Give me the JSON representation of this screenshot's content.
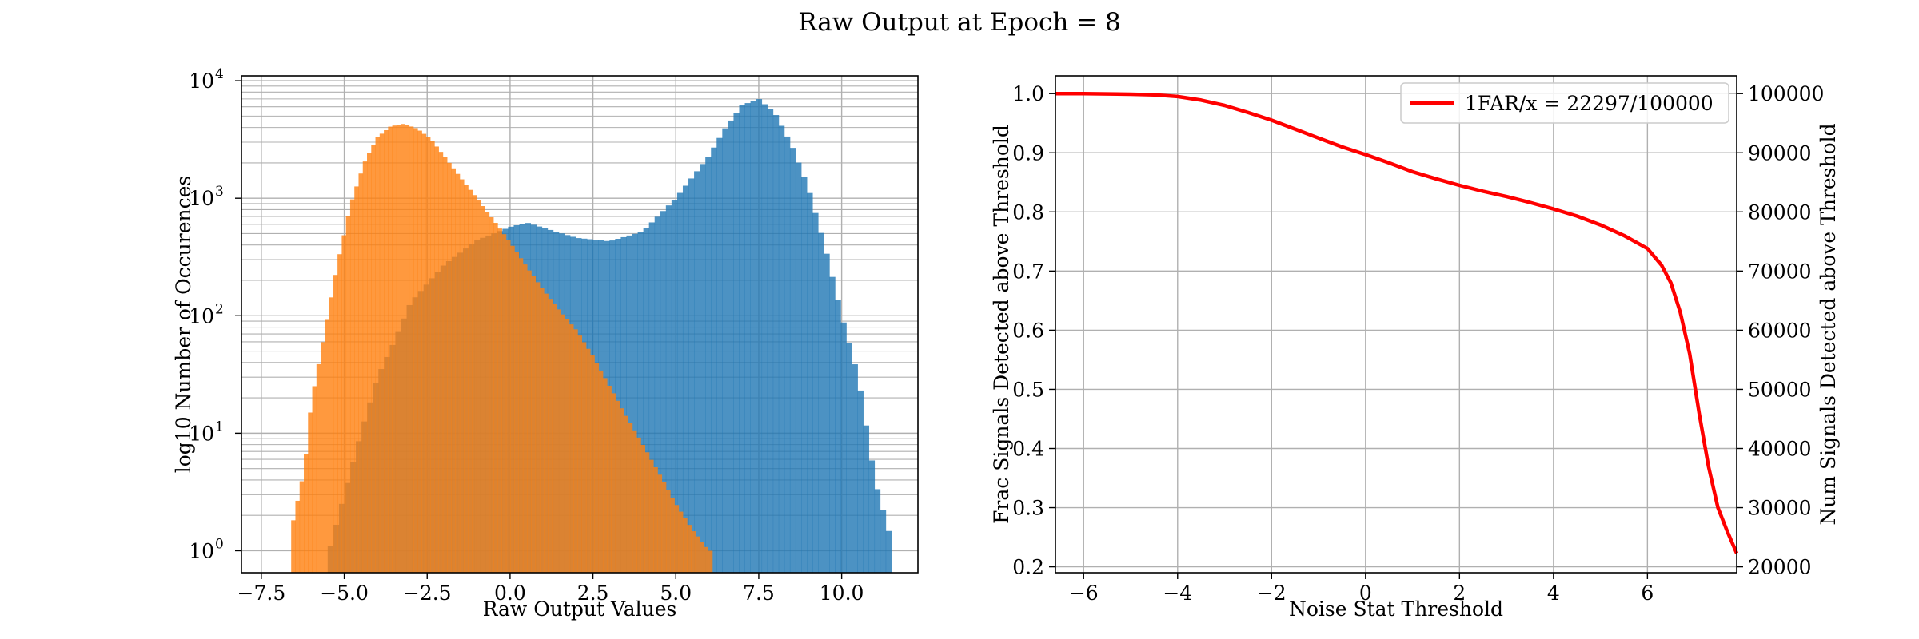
{
  "figure": {
    "title": "Raw Output at Epoch = 8"
  },
  "colors": {
    "signal": "#1f77b4",
    "noise": "#ff7f0e",
    "curve": "#ff0000",
    "grid": "#b0b0b0"
  },
  "chart_data": [
    {
      "type": "bar",
      "subtype": "histogram-overlay",
      "xlabel": "Raw Output Values",
      "ylabel": "log10 Number of Occurences",
      "xlim": [
        -8.1,
        12.3
      ],
      "ylim": [
        0.65,
        11000
      ],
      "yscale": "log",
      "grid": true,
      "xticks": [
        -7.5,
        -5.0,
        -2.5,
        0.0,
        2.5,
        5.0,
        7.5,
        10.0
      ],
      "xtick_labels": [
        "−7.5",
        "−5.0",
        "−2.5",
        "0.0",
        "2.5",
        "5.0",
        "7.5",
        "10.0"
      ],
      "yticks": [
        1,
        10,
        100,
        1000,
        10000
      ],
      "ytick_labels": [
        {
          "base": "10",
          "exp": "0"
        },
        {
          "base": "10",
          "exp": "1"
        },
        {
          "base": "10",
          "exp": "2"
        },
        {
          "base": "10",
          "exp": "3"
        },
        {
          "base": "10",
          "exp": "4"
        }
      ],
      "series": [
        {
          "color": "#1f77b4",
          "bin_range": [
            -5.5,
            11.5
          ],
          "bins": 100,
          "profile_x": [
            -5.5,
            -5.0,
            -4.5,
            -4.0,
            -3.5,
            -3.0,
            -2.0,
            -1.0,
            0.0,
            0.5,
            1.0,
            2.0,
            3.0,
            4.0,
            5.0,
            6.0,
            6.5,
            7.0,
            7.5,
            8.0,
            8.5,
            9.0,
            9.5,
            10.0,
            10.5,
            11.0,
            11.5
          ],
          "profile_y": [
            0.9,
            3,
            10,
            30,
            60,
            130,
            270,
            440,
            570,
            620,
            560,
            460,
            430,
            520,
            1000,
            2300,
            4000,
            6200,
            7000,
            5200,
            2800,
            1200,
            380,
            100,
            30,
            4,
            1.2
          ]
        },
        {
          "color": "#ff7f0e",
          "bin_range": [
            -6.6,
            6.1
          ],
          "bins": 100,
          "profile_x": [
            -6.6,
            -6.2,
            -6.0,
            -5.6,
            -5.2,
            -4.8,
            -4.4,
            -4.0,
            -3.6,
            -3.2,
            -2.8,
            -2.4,
            -2.0,
            -1.5,
            -1.0,
            -0.5,
            0.0,
            0.5,
            1.0,
            1.5,
            2.0,
            2.5,
            3.0,
            3.5,
            4.0,
            4.5,
            5.0,
            5.5,
            6.0
          ],
          "profile_y": [
            1.5,
            5,
            18,
            70,
            280,
            900,
            2000,
            3300,
            4100,
            4300,
            3900,
            3200,
            2300,
            1500,
            1000,
            650,
            420,
            260,
            165,
            110,
            75,
            45,
            25,
            14,
            8,
            4.5,
            2.5,
            1.5,
            1.0
          ]
        }
      ]
    },
    {
      "type": "line",
      "xlabel": "Noise Stat Threshold",
      "ylabel": "Frac Signals Detected above Threshold",
      "ylabel_right": "Num Signals Detected above Threshold",
      "xlim": [
        -6.6,
        7.9
      ],
      "ylim": [
        0.19,
        1.03
      ],
      "ylim_right": [
        19000,
        103000
      ],
      "grid": true,
      "legend_position": "top-right",
      "xticks": [
        -6,
        -4,
        -2,
        0,
        2,
        4,
        6
      ],
      "xtick_labels": [
        "−6",
        "−4",
        "−2",
        "0",
        "2",
        "4",
        "6"
      ],
      "yticks": [
        0.2,
        0.3,
        0.4,
        0.5,
        0.6,
        0.7,
        0.8,
        0.9,
        1.0
      ],
      "ytick_labels": [
        "0.2",
        "0.3",
        "0.4",
        "0.5",
        "0.6",
        "0.7",
        "0.8",
        "0.9",
        "1.0"
      ],
      "yticks_right": [
        20000,
        30000,
        40000,
        50000,
        60000,
        70000,
        80000,
        90000,
        100000
      ],
      "ytick_labels_right": [
        "20000",
        "30000",
        "40000",
        "50000",
        "60000",
        "70000",
        "80000",
        "90000",
        "100000"
      ],
      "series": [
        {
          "name": "1FAR/x = 22297/100000",
          "color": "#ff0000",
          "x": [
            -6.6,
            -6.0,
            -5.0,
            -4.5,
            -4.0,
            -3.5,
            -3.0,
            -2.5,
            -2.0,
            -1.5,
            -1.0,
            -0.5,
            0.0,
            0.5,
            1.0,
            1.5,
            2.0,
            2.5,
            3.0,
            3.5,
            4.0,
            4.5,
            5.0,
            5.5,
            6.0,
            6.3,
            6.5,
            6.7,
            6.9,
            7.1,
            7.3,
            7.5,
            7.7,
            7.9
          ],
          "y": [
            1.0,
            1.0,
            0.999,
            0.998,
            0.995,
            0.989,
            0.98,
            0.968,
            0.955,
            0.94,
            0.925,
            0.91,
            0.897,
            0.883,
            0.868,
            0.856,
            0.845,
            0.835,
            0.826,
            0.816,
            0.805,
            0.793,
            0.778,
            0.76,
            0.738,
            0.71,
            0.68,
            0.63,
            0.56,
            0.46,
            0.37,
            0.3,
            0.26,
            0.223
          ]
        }
      ]
    }
  ]
}
